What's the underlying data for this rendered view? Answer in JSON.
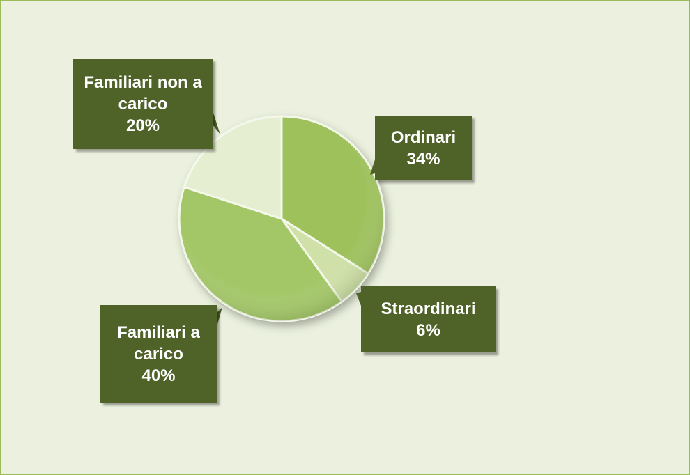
{
  "chart_data": {
    "type": "pie",
    "categories": [
      "Ordinari",
      "Straordinari",
      "Familiari a carico",
      "Familiari non a carico"
    ],
    "values": [
      34,
      6,
      40,
      20
    ],
    "value_labels": [
      "34%",
      "6%",
      "40%",
      "20%"
    ],
    "colors": [
      "#9ec15c",
      "#cfe0a8",
      "#a3c666",
      "#e6eed1"
    ]
  }
}
